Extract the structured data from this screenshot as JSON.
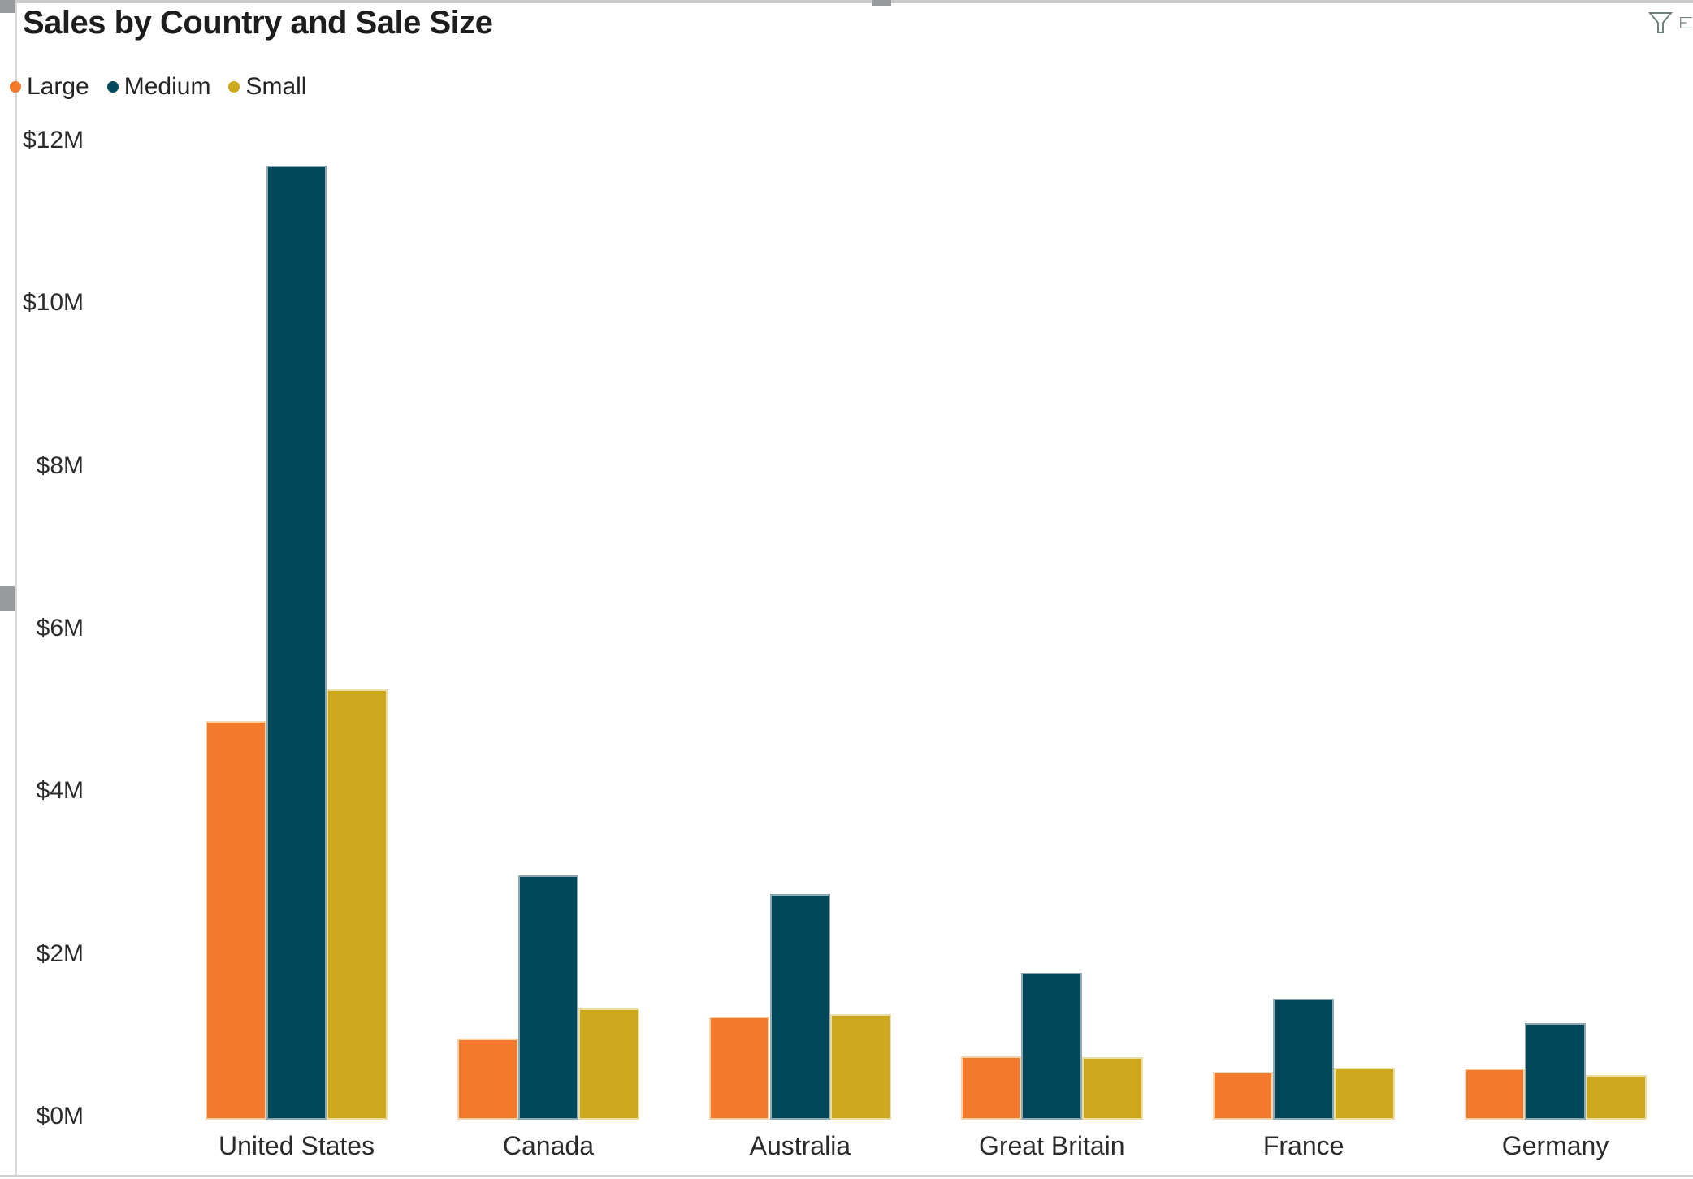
{
  "header": {
    "icons": [
      {
        "name": "filter",
        "label": "filter"
      },
      {
        "name": "clipped-panel",
        "label": "clipped panel icon"
      }
    ]
  },
  "chart_data": {
    "type": "bar",
    "title": "Sales by Country and Sale Size",
    "categories": [
      "United States",
      "Canada",
      "Australia",
      "Great Britain",
      "France",
      "Germany"
    ],
    "series": [
      {
        "name": "Large",
        "color": "#F27A2C",
        "border_color": "#F9D3AC",
        "values": [
          4.9,
          1.0,
          1.27,
          0.78,
          0.59,
          0.63
        ]
      },
      {
        "name": "Medium",
        "color": "#03485A",
        "border_color": "#8FA9B2",
        "values": [
          11.73,
          3.0,
          2.78,
          1.81,
          1.49,
          1.19
        ]
      },
      {
        "name": "Small",
        "color": "#CDA81C",
        "border_color": "#EBDFA8",
        "values": [
          5.29,
          1.37,
          1.3,
          0.77,
          0.64,
          0.55
        ]
      }
    ],
    "y_ticks": [
      {
        "label": "$0M",
        "value": 0
      },
      {
        "label": "$2M",
        "value": 2
      },
      {
        "label": "$4M",
        "value": 4
      },
      {
        "label": "$6M",
        "value": 6
      },
      {
        "label": "$8M",
        "value": 8
      },
      {
        "label": "$10M",
        "value": 10
      },
      {
        "label": "$12M",
        "value": 12
      }
    ],
    "ylim": [
      0,
      12
    ],
    "xlabel": "",
    "ylabel": "",
    "grid": false,
    "legend_position": "top-left"
  }
}
